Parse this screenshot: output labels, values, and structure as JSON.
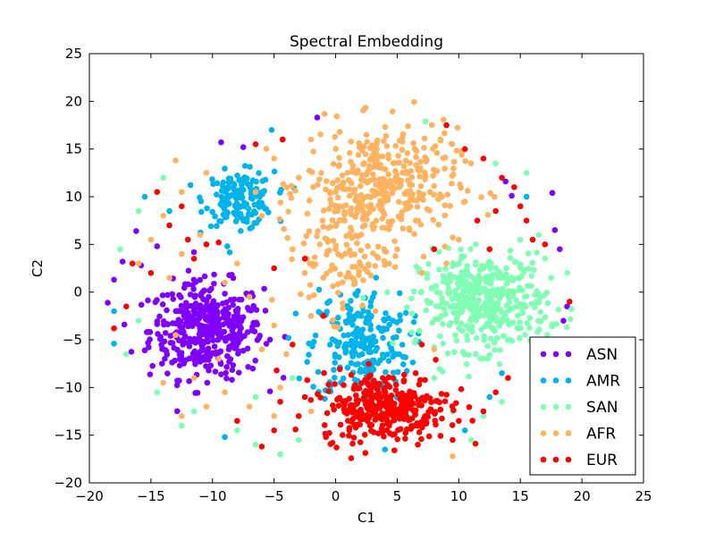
{
  "chart_data": {
    "type": "scatter",
    "title": "Spectral Embedding",
    "xlabel": "C1",
    "ylabel": "C2",
    "xlim": [
      -20,
      25
    ],
    "ylim": [
      -20,
      25
    ],
    "xticks": [
      -20,
      -15,
      -10,
      -5,
      0,
      5,
      10,
      15,
      20,
      25
    ],
    "yticks": [
      -20,
      -15,
      -10,
      -5,
      0,
      5,
      10,
      15,
      20,
      25
    ],
    "xtick_labels": [
      "−20",
      "−15",
      "−10",
      "−5",
      "0",
      "5",
      "10",
      "15",
      "20",
      "25"
    ],
    "ytick_labels": [
      "−20",
      "−15",
      "−10",
      "−5",
      "0",
      "5",
      "10",
      "15",
      "20",
      "25"
    ],
    "grid": false,
    "legend_position": "lower-right",
    "series": [
      {
        "name": "ASN",
        "color": "#8000ff",
        "clusters": [
          {
            "center": [
              -10.5,
              -4.0
            ],
            "spread": [
              2.3,
              2.5
            ],
            "count": 420
          }
        ],
        "sparse": [
          [
            -18,
            1.3
          ],
          [
            -17.3,
            3.2
          ],
          [
            -16.2,
            6.4
          ],
          [
            -15.8,
            2.8
          ],
          [
            -9.3,
            15.7
          ],
          [
            -7.5,
            15.2
          ],
          [
            -1.5,
            18.3
          ],
          [
            17.6,
            10.4
          ],
          [
            17.8,
            6.5
          ],
          [
            18.2,
            4.5
          ],
          [
            18.8,
            -1.5
          ],
          [
            18.5,
            -3.0
          ],
          [
            14.3,
            10.1
          ],
          [
            13.8,
            11.6
          ],
          [
            -14.5,
            4.8
          ]
        ]
      },
      {
        "name": "AMR",
        "color": "#00b4eb",
        "clusters": [
          {
            "center": [
              -7.8,
              9.8
            ],
            "spread": [
              1.4,
              1.4
            ],
            "count": 160
          },
          {
            "center": [
              2.0,
              -5.5
            ],
            "spread": [
              2.0,
              3.0
            ],
            "count": 230
          }
        ],
        "sparse": [
          [
            -5.2,
            17.0
          ],
          [
            -8.8,
            4.8
          ],
          [
            -18.0,
            -2.0
          ],
          [
            -18.0,
            -5.4
          ],
          [
            -15.5,
            10.0
          ],
          [
            -13.5,
            8.5
          ],
          [
            -9.0,
            -15.2
          ],
          [
            10.5,
            -14.5
          ],
          [
            12.5,
            -11.0
          ],
          [
            13.5,
            -8.5
          ],
          [
            4.0,
            -16.5
          ],
          [
            15.5,
            10.0
          ],
          [
            -6.8,
            6.8
          ]
        ]
      },
      {
        "name": "SAN",
        "color": "#80ffb4",
        "clusters": [
          {
            "center": [
              12.0,
              -1.0
            ],
            "spread": [
              2.6,
              2.5
            ],
            "count": 420
          }
        ],
        "sparse": [
          [
            -17.0,
            -6.5
          ],
          [
            -16.0,
            -3.0
          ],
          [
            -14.5,
            -10.5
          ],
          [
            -12.5,
            -14.0
          ],
          [
            -11.5,
            -12.5
          ],
          [
            -8.0,
            -14.5
          ],
          [
            -6.5,
            -16.0
          ],
          [
            -4.5,
            -17.0
          ],
          [
            -3.0,
            -15.5
          ],
          [
            -14.0,
            12.0
          ],
          [
            -16.0,
            8.5
          ],
          [
            -17.5,
            4.5
          ],
          [
            7.3,
            17.9
          ],
          [
            9.5,
            15.5
          ],
          [
            13.0,
            13.5
          ],
          [
            15.5,
            12.5
          ],
          [
            16.5,
            6.0
          ],
          [
            17.0,
            3.5
          ],
          [
            16.0,
            -9.5
          ],
          [
            13.5,
            -11.5
          ],
          [
            12.0,
            -13.0
          ],
          [
            9.5,
            -12.5
          ],
          [
            11.0,
            -15.5
          ],
          [
            8.0,
            -9.0
          ],
          [
            16.0,
            -6.0
          ],
          [
            17.5,
            1.5
          ],
          [
            6.5,
            -5.0
          ],
          [
            -6.5,
            -11.0
          ],
          [
            -3.5,
            -9.0
          ]
        ]
      },
      {
        "name": "AFR",
        "color": "#ffb360",
        "clusters": [
          {
            "center": [
              3.7,
              11.2
            ],
            "spread": [
              3.1,
              3.0
            ],
            "count": 360
          },
          {
            "center": [
              0.8,
              4.0
            ],
            "spread": [
              1.8,
              3.2
            ],
            "count": 110
          }
        ],
        "sparse": [
          [
            -14.0,
            -9.5
          ],
          [
            -13.0,
            13.8
          ],
          [
            -10.5,
            12.5
          ],
          [
            -12.5,
            10.5
          ],
          [
            -14.0,
            8.0
          ],
          [
            -15.0,
            5.5
          ],
          [
            -16.0,
            3.0
          ],
          [
            -13.5,
            1.5
          ],
          [
            -12.5,
            -13.0
          ],
          [
            -10.5,
            -12.0
          ],
          [
            -9.0,
            -10.5
          ],
          [
            -7.0,
            -12.0
          ],
          [
            -5.0,
            -13.0
          ],
          [
            -4.5,
            -10.0
          ],
          [
            -2.0,
            -12.5
          ],
          [
            -6.5,
            10.5
          ],
          [
            -6.0,
            8.0
          ],
          [
            -3.5,
            4.5
          ],
          [
            -2.0,
            16.0
          ],
          [
            2.5,
            16.5
          ],
          [
            9.5,
            -17.2
          ],
          [
            10.5,
            9.5
          ],
          [
            10.0,
            5.5
          ],
          [
            11.0,
            13.5
          ],
          [
            8.5,
            16.0
          ],
          [
            -5.0,
            -3.5
          ],
          [
            -4.0,
            -6.5
          ],
          [
            -2.0,
            -2.5
          ],
          [
            -1.0,
            1.5
          ],
          [
            -8.0,
            3.0
          ],
          [
            -11.0,
            6.0
          ],
          [
            -12.5,
            4.0
          ],
          [
            -9.0,
            1.0
          ],
          [
            -7.0,
            -0.5
          ],
          [
            -3.0,
            12.0
          ],
          [
            -5.0,
            14.0
          ],
          [
            8.0,
            -6.0
          ],
          [
            -6.0,
            -6.0
          ],
          [
            -9.5,
            -7.0
          ],
          [
            -13.0,
            -4.5
          ],
          [
            -11.5,
            -9.0
          ],
          [
            7.0,
            2.0
          ],
          [
            9.0,
            3.0
          ],
          [
            5.0,
            4.5
          ],
          [
            6.0,
            6.5
          ]
        ]
      },
      {
        "name": "EUR",
        "color": "#ff0000",
        "clusters": [
          {
            "center": [
              4.0,
              -12.0
            ],
            "spread": [
              2.6,
              1.8
            ],
            "count": 330
          }
        ],
        "sparse": [
          [
            -18.0,
            -3.8
          ],
          [
            -17.0,
            -1.5
          ],
          [
            -16.5,
            3.0
          ],
          [
            -15.0,
            2.0
          ],
          [
            -14.5,
            10.5
          ],
          [
            -13.5,
            7.0
          ],
          [
            -12.5,
            9.0
          ],
          [
            -12.0,
            5.5
          ],
          [
            -11.5,
            3.5
          ],
          [
            -10.5,
            5.0
          ],
          [
            -9.5,
            5.2
          ],
          [
            -6.5,
            15.5
          ],
          [
            -4.3,
            16.0
          ],
          [
            -5.0,
            2.5
          ],
          [
            -2.5,
            3.5
          ],
          [
            -1.0,
            -2.5
          ],
          [
            -3.5,
            -5.5
          ],
          [
            -8.0,
            -13.5
          ],
          [
            -6.0,
            -16.2
          ],
          [
            -5.0,
            -14.5
          ],
          [
            -3.0,
            -13.0
          ],
          [
            9.0,
            17.5
          ],
          [
            10.5,
            15.0
          ],
          [
            12.0,
            14.0
          ],
          [
            13.5,
            12.0
          ],
          [
            14.5,
            11.0
          ],
          [
            15.0,
            9.0
          ],
          [
            15.5,
            7.5
          ],
          [
            16.0,
            5.5
          ],
          [
            17.0,
            5.0
          ],
          [
            19.0,
            -1.0
          ],
          [
            13.0,
            8.5
          ],
          [
            11.5,
            7.5
          ],
          [
            8.0,
            4.5
          ],
          [
            14.0,
            -9.0
          ],
          [
            13.0,
            -10.5
          ],
          [
            12.0,
            -12.5
          ],
          [
            10.0,
            -13.5
          ],
          [
            9.5,
            -15.5
          ],
          [
            7.0,
            -5.5
          ],
          [
            6.5,
            -8.5
          ],
          [
            -4.5,
            -11.5
          ],
          [
            -2.5,
            -11.0
          ],
          [
            12.5,
            4.5
          ]
        ]
      }
    ],
    "legend_entries": [
      "ASN",
      "AMR",
      "SAN",
      "AFR",
      "EUR"
    ]
  }
}
